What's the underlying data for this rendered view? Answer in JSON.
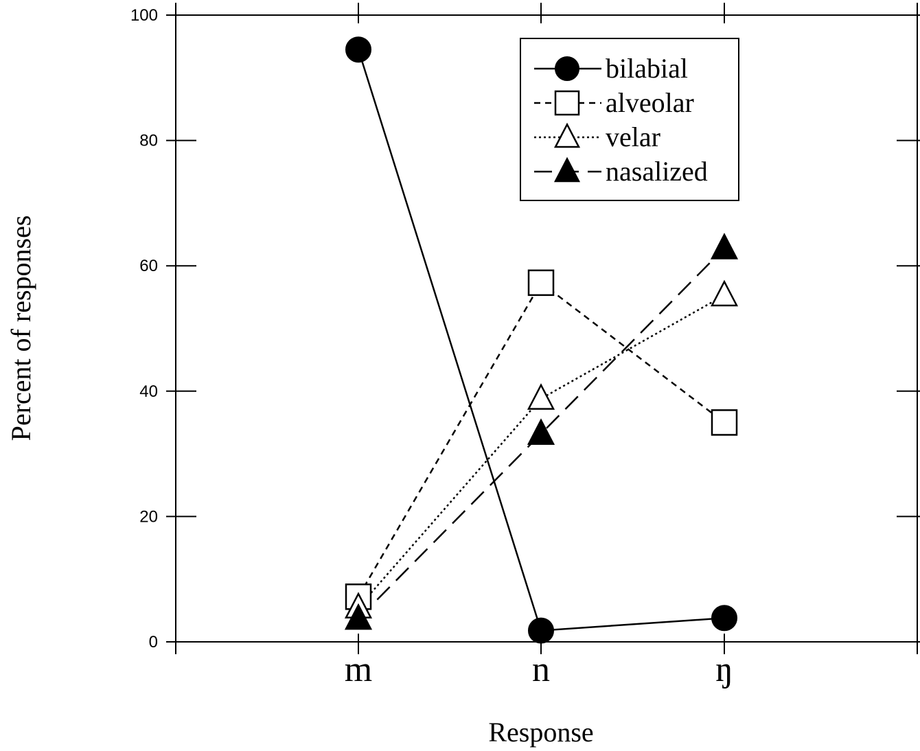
{
  "chart_data": {
    "type": "line",
    "title": "",
    "xlabel": "Response",
    "ylabel": "Percent of responses",
    "categories": [
      "m",
      "n",
      "ŋ"
    ],
    "ylim": [
      0,
      100
    ],
    "yticks": [
      0,
      20,
      40,
      60,
      80,
      100
    ],
    "grid": false,
    "legend_position": "top-right",
    "series": [
      {
        "name": "bilabial",
        "values": [
          94.5,
          1.8,
          3.8
        ],
        "line_style": "solid",
        "marker": "filled-circle"
      },
      {
        "name": "alveolar",
        "values": [
          7.2,
          57.3,
          35.0
        ],
        "line_style": "short-dash",
        "marker": "open-square"
      },
      {
        "name": "velar",
        "values": [
          5.5,
          38.8,
          55.3
        ],
        "line_style": "dotted",
        "marker": "open-triangle"
      },
      {
        "name": "nasalized",
        "values": [
          3.7,
          33.2,
          62.8
        ],
        "line_style": "long-dash",
        "marker": "filled-triangle"
      }
    ]
  }
}
